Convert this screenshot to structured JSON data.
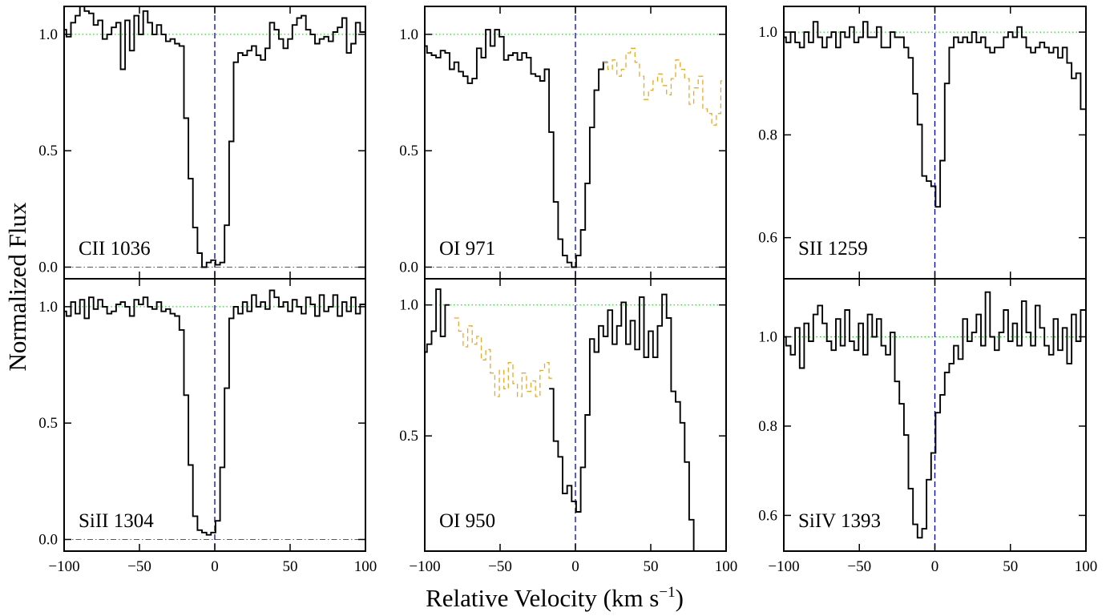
{
  "figure": {
    "ylabel": "Normalized Flux",
    "xlabel_main": "Relative Velocity  (km s",
    "xlabel_sup": "−1",
    "xlabel_close": ")"
  },
  "colors": {
    "spectrum": "#000000",
    "blend": "#f0a820",
    "continuum": "#00cc00",
    "zero": "#dd2222",
    "center": "#0000cc"
  },
  "chart_data": [
    {
      "type": "line",
      "label": "CII 1036",
      "xlim": [
        -100,
        100
      ],
      "ylim": [
        -0.05,
        1.12
      ],
      "yticks": [
        "0.0",
        "0.5",
        "1.0"
      ],
      "ytick_values": [
        0.0,
        0.5,
        1.0
      ],
      "xticks": [],
      "continuum": 1.0,
      "zero_line": 0.0,
      "center_line": 0,
      "grid": false,
      "series": [
        {
          "style": "step",
          "color": "black",
          "x": [
            -100,
            -97,
            -94,
            -91,
            -88,
            -85,
            -82,
            -79,
            -76,
            -73,
            -70,
            -67,
            -64,
            -61,
            -58,
            -55,
            -52,
            -49,
            -46,
            -43,
            -40,
            -37,
            -34,
            -31,
            -28,
            -25,
            -22,
            -19,
            -16,
            -13,
            -10,
            -7,
            -4,
            -1,
            2,
            5,
            8,
            11,
            14,
            17,
            20,
            23,
            26,
            29,
            32,
            35,
            38,
            41,
            44,
            47,
            50,
            53,
            56,
            59,
            62,
            65,
            68,
            71,
            74,
            77,
            80,
            83,
            86,
            89,
            92,
            95,
            98
          ],
          "y": [
            1.02,
            0.99,
            1.05,
            1.08,
            1.12,
            1.1,
            1.09,
            1.04,
            1.06,
            0.98,
            1.0,
            1.03,
            1.05,
            0.85,
            1.06,
            0.93,
            1.08,
            1.0,
            1.1,
            1.05,
            1.0,
            1.04,
            1.0,
            0.97,
            0.98,
            0.96,
            0.95,
            0.64,
            0.38,
            0.17,
            0.06,
            0.0,
            0.02,
            0.03,
            0.01,
            0.02,
            0.18,
            0.54,
            0.88,
            0.92,
            0.91,
            0.93,
            0.95,
            0.91,
            0.89,
            0.94,
            1.05,
            1.02,
            0.98,
            0.94,
            0.98,
            1.04,
            1.07,
            1.08,
            1.02,
            1.0,
            0.96,
            0.98,
            0.99,
            0.97,
            1.01,
            1.03,
            1.07,
            0.92,
            0.96,
            1.05,
            1.01
          ]
        }
      ]
    },
    {
      "type": "line",
      "label": "OI 971",
      "xlim": [
        -100,
        100
      ],
      "ylim": [
        -0.05,
        1.12
      ],
      "yticks": [
        "0.0",
        "0.5",
        "1.0"
      ],
      "ytick_values": [
        0.0,
        0.5,
        1.0
      ],
      "xticks": [],
      "continuum": 1.0,
      "zero_line": 0.0,
      "center_line": 0,
      "grid": false,
      "series": [
        {
          "style": "step",
          "color": "black",
          "x": [
            -100,
            -97,
            -94,
            -91,
            -88,
            -85,
            -82,
            -79,
            -76,
            -73,
            -70,
            -67,
            -64,
            -61,
            -58,
            -55,
            -52,
            -49,
            -46,
            -43,
            -40,
            -37,
            -34,
            -31,
            -28,
            -25,
            -22,
            -19,
            -16,
            -13,
            -10,
            -7,
            -4,
            -1,
            2,
            5,
            8,
            11,
            14,
            17,
            20
          ],
          "y": [
            0.95,
            0.92,
            0.91,
            0.9,
            0.93,
            0.92,
            0.85,
            0.88,
            0.84,
            0.82,
            0.79,
            0.81,
            0.94,
            0.9,
            1.02,
            0.95,
            1.02,
            0.99,
            0.89,
            0.91,
            0.92,
            0.89,
            0.92,
            0.9,
            0.83,
            0.82,
            0.8,
            0.85,
            0.58,
            0.28,
            0.12,
            0.05,
            0.02,
            0.0,
            0.05,
            0.16,
            0.36,
            0.6,
            0.76,
            0.85,
            0.88
          ]
        },
        {
          "style": "step-dashed",
          "color": "orange",
          "x": [
            20,
            23,
            26,
            29,
            32,
            35,
            38,
            41,
            44,
            47,
            50,
            53,
            56,
            59,
            62,
            65,
            68,
            71,
            74,
            77,
            80,
            83,
            86,
            89,
            92,
            95,
            98
          ],
          "y": [
            0.88,
            0.85,
            0.89,
            0.82,
            0.85,
            0.92,
            0.94,
            0.88,
            0.82,
            0.72,
            0.76,
            0.8,
            0.83,
            0.78,
            0.74,
            0.81,
            0.89,
            0.85,
            0.81,
            0.7,
            0.77,
            0.82,
            0.68,
            0.66,
            0.61,
            0.66,
            0.8
          ]
        }
      ]
    },
    {
      "type": "line",
      "label": "SII 1259",
      "xlim": [
        -100,
        100
      ],
      "ylim": [
        0.52,
        1.05
      ],
      "yticks": [
        "0.6",
        "0.8",
        "1.0"
      ],
      "ytick_values": [
        0.6,
        0.8,
        1.0
      ],
      "xticks": [],
      "continuum": 1.0,
      "zero_line": null,
      "center_line": 0,
      "grid": false,
      "series": [
        {
          "style": "step",
          "color": "black",
          "x": [
            -100,
            -97,
            -94,
            -91,
            -88,
            -85,
            -82,
            -79,
            -76,
            -73,
            -70,
            -67,
            -64,
            -61,
            -58,
            -55,
            -52,
            -49,
            -46,
            -43,
            -40,
            -37,
            -34,
            -31,
            -28,
            -25,
            -22,
            -19,
            -16,
            -13,
            -10,
            -7,
            -4,
            -1,
            2,
            5,
            8,
            11,
            14,
            17,
            20,
            23,
            26,
            29,
            32,
            35,
            38,
            41,
            44,
            47,
            50,
            53,
            56,
            59,
            62,
            65,
            68,
            71,
            74,
            77,
            80,
            83,
            86,
            89,
            92,
            95,
            98
          ],
          "y": [
            0.99,
            0.98,
            1.0,
            0.98,
            0.97,
            1.0,
            0.98,
            1.02,
            0.99,
            0.97,
            0.99,
            1.0,
            0.97,
            1.0,
            0.99,
            1.01,
            0.98,
            0.99,
            1.02,
            0.99,
            0.99,
            1.01,
            0.97,
            0.97,
            1.0,
            0.99,
            0.99,
            0.97,
            0.95,
            0.88,
            0.82,
            0.72,
            0.71,
            0.7,
            0.66,
            0.75,
            0.9,
            0.97,
            0.99,
            0.98,
            0.99,
            0.98,
            1.0,
            0.98,
            0.99,
            0.97,
            0.96,
            0.97,
            0.97,
            0.99,
            1.0,
            0.99,
            1.01,
            0.99,
            0.97,
            0.96,
            0.97,
            0.98,
            0.97,
            0.96,
            0.97,
            0.95,
            0.97,
            0.94,
            0.91,
            0.92,
            0.85
          ]
        }
      ]
    },
    {
      "type": "line",
      "label": "SiII 1304",
      "xlim": [
        -100,
        100
      ],
      "ylim": [
        -0.05,
        1.12
      ],
      "yticks": [
        "0.0",
        "0.5",
        "1.0"
      ],
      "ytick_values": [
        0.0,
        0.5,
        1.0
      ],
      "xticks": [
        "−100",
        "−50",
        "0",
        "50",
        "100"
      ],
      "xtick_values": [
        -100,
        -50,
        0,
        50,
        100
      ],
      "continuum": 1.0,
      "zero_line": 0.0,
      "center_line": 0,
      "grid": false,
      "series": [
        {
          "style": "step",
          "color": "black",
          "x": [
            -100,
            -97,
            -94,
            -91,
            -88,
            -85,
            -82,
            -79,
            -76,
            -73,
            -70,
            -67,
            -64,
            -61,
            -58,
            -55,
            -52,
            -49,
            -46,
            -43,
            -40,
            -37,
            -34,
            -31,
            -28,
            -25,
            -22,
            -19,
            -16,
            -13,
            -10,
            -7,
            -4,
            -1,
            2,
            5,
            8,
            11,
            14,
            17,
            20,
            23,
            26,
            29,
            32,
            35,
            38,
            41,
            44,
            47,
            50,
            53,
            56,
            59,
            62,
            65,
            68,
            71,
            74,
            77,
            80,
            83,
            86,
            89,
            92,
            95,
            98
          ],
          "y": [
            0.98,
            0.96,
            1.02,
            0.97,
            1.03,
            0.95,
            1.04,
            0.99,
            1.03,
            1.0,
            0.97,
            0.98,
            1.01,
            1.02,
            1.0,
            0.96,
            1.03,
            1.01,
            1.04,
            1.0,
            0.99,
            1.02,
            0.98,
            0.99,
            0.97,
            0.96,
            0.9,
            0.62,
            0.32,
            0.1,
            0.04,
            0.03,
            0.02,
            0.03,
            0.08,
            0.31,
            0.65,
            0.95,
            1.0,
            0.97,
            1.02,
            0.98,
            1.05,
            1.0,
            1.02,
            0.99,
            1.07,
            1.04,
            1.0,
            1.02,
            0.98,
            1.03,
            1.0,
            0.97,
            1.04,
            1.01,
            0.96,
            1.05,
            0.98,
            1.0,
            1.05,
            0.96,
            1.02,
            0.98,
            1.04,
            0.97,
            1.01
          ]
        }
      ]
    },
    {
      "type": "line",
      "label": "OI 950",
      "xlim": [
        -100,
        100
      ],
      "ylim": [
        0.06,
        1.1
      ],
      "yticks": [
        "0.5",
        "1.0"
      ],
      "ytick_values": [
        0.5,
        1.0
      ],
      "xticks": [
        "−100",
        "−50",
        "0",
        "50",
        "100"
      ],
      "xtick_values": [
        -100,
        -50,
        0,
        50,
        100
      ],
      "continuum": 1.0,
      "zero_line": null,
      "center_line": 0,
      "grid": false,
      "series": [
        {
          "style": "step",
          "color": "black",
          "x": [
            -100,
            -97,
            -94,
            -91,
            -88,
            -85
          ],
          "y": [
            0.82,
            0.85,
            0.9,
            1.06,
            0.88,
            1.0
          ]
        },
        {
          "style": "step-dashed",
          "color": "orange",
          "x": [
            -79,
            -76,
            -73,
            -70,
            -67,
            -64,
            -61,
            -58,
            -55,
            -52,
            -49,
            -46,
            -43,
            -40,
            -37,
            -34,
            -31,
            -28,
            -25,
            -22,
            -19,
            -16
          ],
          "y": [
            0.95,
            0.9,
            0.84,
            0.92,
            0.85,
            0.88,
            0.79,
            0.83,
            0.74,
            0.65,
            0.75,
            0.68,
            0.78,
            0.7,
            0.65,
            0.74,
            0.67,
            0.71,
            0.65,
            0.75,
            0.78,
            0.72
          ]
        },
        {
          "style": "step",
          "color": "black",
          "x": [
            -16,
            -13,
            -10,
            -7,
            -4,
            -1,
            2,
            5,
            8,
            11,
            14,
            17,
            20,
            23,
            26,
            29,
            32,
            35,
            38,
            41,
            44,
            47,
            50,
            53,
            56,
            59,
            62,
            65,
            68,
            71,
            74,
            77,
            80
          ],
          "y": [
            0.68,
            0.48,
            0.42,
            0.28,
            0.31,
            0.25,
            0.21,
            0.38,
            0.58,
            0.87,
            0.82,
            0.92,
            0.88,
            0.98,
            0.85,
            0.92,
            1.01,
            0.85,
            0.94,
            0.83,
            1.03,
            0.8,
            0.9,
            0.8,
            0.92,
            1.04,
            0.95,
            0.67,
            0.63,
            0.55,
            0.4,
            0.18,
            0.05
          ]
        }
      ]
    },
    {
      "type": "line",
      "label": "SiIV 1393",
      "xlim": [
        -100,
        100
      ],
      "ylim": [
        0.52,
        1.13
      ],
      "yticks": [
        "0.6",
        "0.8",
        "1.0"
      ],
      "ytick_values": [
        0.6,
        0.8,
        1.0
      ],
      "xticks": [
        "−100",
        "−50",
        "0",
        "50",
        "100"
      ],
      "xtick_values": [
        -100,
        -50,
        0,
        50,
        100
      ],
      "continuum": 1.0,
      "zero_line": null,
      "center_line": 0,
      "grid": false,
      "series": [
        {
          "style": "step",
          "color": "black",
          "x": [
            -100,
            -97,
            -94,
            -91,
            -88,
            -85,
            -82,
            -79,
            -76,
            -73,
            -70,
            -67,
            -64,
            -61,
            -58,
            -55,
            -52,
            -49,
            -46,
            -43,
            -40,
            -37,
            -34,
            -31,
            -28,
            -25,
            -22,
            -19,
            -16,
            -13,
            -10,
            -7,
            -4,
            -1,
            2,
            5,
            8,
            11,
            14,
            17,
            20,
            23,
            26,
            29,
            32,
            35,
            38,
            41,
            44,
            47,
            50,
            53,
            56,
            59,
            62,
            65,
            68,
            71,
            74,
            77,
            80,
            83,
            86,
            89,
            92,
            95,
            98
          ],
          "y": [
            1.0,
            0.98,
            0.96,
            1.02,
            0.93,
            1.03,
            0.99,
            1.05,
            1.07,
            1.03,
            0.99,
            0.97,
            1.04,
            0.98,
            1.06,
            0.99,
            0.97,
            1.03,
            0.96,
            1.05,
            1.0,
            1.04,
            0.98,
            0.96,
            1.01,
            0.9,
            0.85,
            0.78,
            0.66,
            0.58,
            0.55,
            0.57,
            0.68,
            0.74,
            0.83,
            0.87,
            0.92,
            0.94,
            0.98,
            0.95,
            1.04,
            0.99,
            1.01,
            1.05,
            0.98,
            1.1,
            1.0,
            0.97,
            1.01,
            1.06,
            0.99,
            1.03,
            0.98,
            1.08,
            1.01,
            0.98,
            1.07,
            1.02,
            0.98,
            0.96,
            1.04,
            0.97,
            1.02,
            0.94,
            1.05,
            0.99,
            1.06
          ]
        }
      ]
    }
  ]
}
